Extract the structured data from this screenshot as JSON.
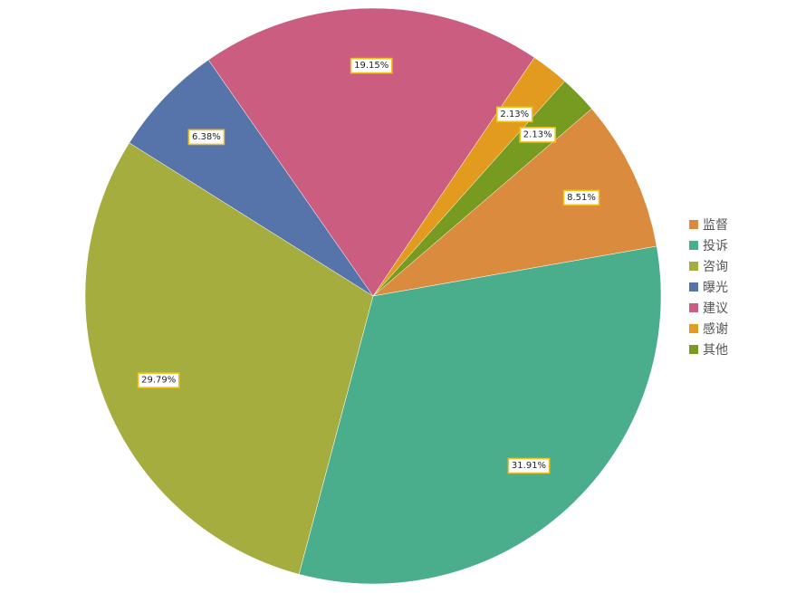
{
  "chart_data": {
    "type": "pie",
    "slices": [
      {
        "label": "监督",
        "value": 8.51,
        "value_label": "8.51%",
        "color": "#da8b3d"
      },
      {
        "label": "投诉",
        "value": 31.91,
        "value_label": "31.91%",
        "color": "#4aad8c"
      },
      {
        "label": "咨询",
        "value": 29.79,
        "value_label": "29.79%",
        "color": "#a5ad3e"
      },
      {
        "label": "曝光",
        "value": 6.38,
        "value_label": "6.38%",
        "color": "#5674a9"
      },
      {
        "label": "建议",
        "value": 19.15,
        "value_label": "19.15%",
        "color": "#cb5e80"
      },
      {
        "label": "感谢",
        "value": 2.13,
        "value_label": "2.13%",
        "color": "#e29b1e"
      },
      {
        "label": "其他",
        "value": 2.13,
        "value_label": "2.13%",
        "color": "#779a20"
      }
    ],
    "legend_position": "right",
    "start_angle_deg": 49.4,
    "direction": "clockwise"
  }
}
